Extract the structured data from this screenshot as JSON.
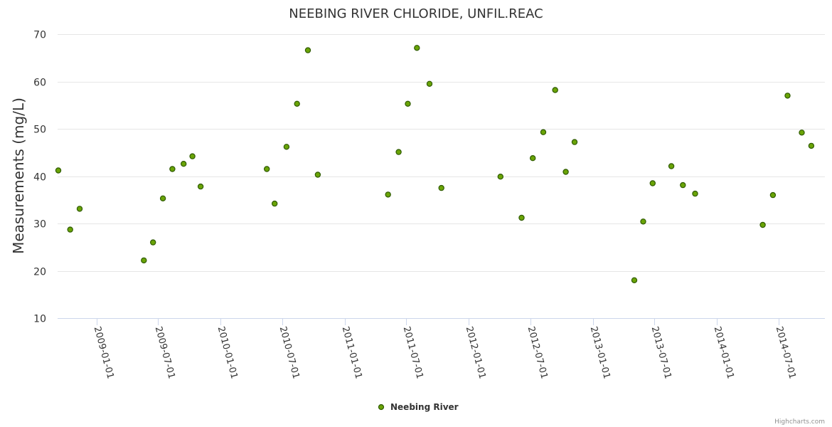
{
  "chart_data": {
    "type": "scatter",
    "title": "NEEBING RIVER CHLORIDE, UNFIL.REAC",
    "xlabel": "",
    "ylabel": "Measurements (mg/L)",
    "ylim": [
      10,
      70
    ],
    "yticks": [
      10,
      20,
      30,
      40,
      50,
      60,
      70
    ],
    "xlim": [
      "2008-09-08",
      "2014-11-15"
    ],
    "xticks": [
      "2009-01-01",
      "2009-07-01",
      "2010-01-01",
      "2010-07-01",
      "2011-01-01",
      "2011-07-01",
      "2012-01-01",
      "2012-07-01",
      "2013-01-01",
      "2013-07-01",
      "2014-01-01",
      "2014-07-01"
    ],
    "grid": true,
    "legend": "bottom-center",
    "series": [
      {
        "name": "Neebing River",
        "color": "#6aa406",
        "points": [
          {
            "x": "2008-09-10",
            "y": 41.2
          },
          {
            "x": "2008-10-15",
            "y": 28.7
          },
          {
            "x": "2008-11-12",
            "y": 33.1
          },
          {
            "x": "2009-05-20",
            "y": 22.2
          },
          {
            "x": "2009-06-16",
            "y": 26.0
          },
          {
            "x": "2009-07-15",
            "y": 35.3
          },
          {
            "x": "2009-08-12",
            "y": 41.5
          },
          {
            "x": "2009-09-14",
            "y": 42.6
          },
          {
            "x": "2009-10-10",
            "y": 44.2
          },
          {
            "x": "2009-11-03",
            "y": 37.8
          },
          {
            "x": "2010-05-17",
            "y": 41.5
          },
          {
            "x": "2010-06-09",
            "y": 34.2
          },
          {
            "x": "2010-07-14",
            "y": 46.2
          },
          {
            "x": "2010-08-14",
            "y": 55.3
          },
          {
            "x": "2010-09-15",
            "y": 66.6
          },
          {
            "x": "2010-10-14",
            "y": 40.3
          },
          {
            "x": "2011-05-09",
            "y": 36.1
          },
          {
            "x": "2011-06-09",
            "y": 45.1
          },
          {
            "x": "2011-07-06",
            "y": 55.3
          },
          {
            "x": "2011-08-02",
            "y": 67.1
          },
          {
            "x": "2011-09-08",
            "y": 59.5
          },
          {
            "x": "2011-10-13",
            "y": 37.5
          },
          {
            "x": "2012-04-04",
            "y": 39.9
          },
          {
            "x": "2012-06-05",
            "y": 31.2
          },
          {
            "x": "2012-07-08",
            "y": 43.8
          },
          {
            "x": "2012-08-08",
            "y": 49.3
          },
          {
            "x": "2012-09-12",
            "y": 58.2
          },
          {
            "x": "2012-10-13",
            "y": 40.9
          },
          {
            "x": "2012-11-08",
            "y": 47.2
          },
          {
            "x": "2013-05-03",
            "y": 18.0
          },
          {
            "x": "2013-05-29",
            "y": 30.4
          },
          {
            "x": "2013-06-26",
            "y": 38.5
          },
          {
            "x": "2013-08-20",
            "y": 42.1
          },
          {
            "x": "2013-09-23",
            "y": 38.1
          },
          {
            "x": "2013-10-29",
            "y": 36.3
          },
          {
            "x": "2014-05-16",
            "y": 29.7
          },
          {
            "x": "2014-06-15",
            "y": 36.0
          },
          {
            "x": "2014-07-28",
            "y": 57.0
          },
          {
            "x": "2014-09-08",
            "y": 49.2
          },
          {
            "x": "2014-10-06",
            "y": 46.4
          }
        ]
      }
    ]
  },
  "credits": "Highcharts.com"
}
